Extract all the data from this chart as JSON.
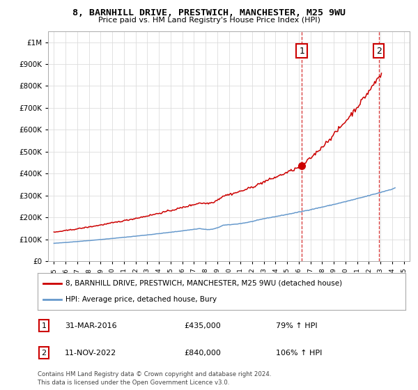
{
  "title": "8, BARNHILL DRIVE, PRESTWICH, MANCHESTER, M25 9WU",
  "subtitle": "Price paid vs. HM Land Registry's House Price Index (HPI)",
  "legend_line1": "8, BARNHILL DRIVE, PRESTWICH, MANCHESTER, M25 9WU (detached house)",
  "legend_line2": "HPI: Average price, detached house, Bury",
  "annotation1_label": "1",
  "annotation1_date": "31-MAR-2016",
  "annotation1_price": "£435,000",
  "annotation1_hpi": "79% ↑ HPI",
  "annotation1_year": 2016.25,
  "annotation1_value": 435000,
  "annotation2_label": "2",
  "annotation2_date": "11-NOV-2022",
  "annotation2_price": "£840,000",
  "annotation2_hpi": "106% ↑ HPI",
  "annotation2_year": 2022.86,
  "annotation2_value": 840000,
  "footer1": "Contains HM Land Registry data © Crown copyright and database right 2024.",
  "footer2": "This data is licensed under the Open Government Licence v3.0.",
  "red_color": "#cc0000",
  "blue_color": "#6699cc",
  "background_color": "#ffffff",
  "grid_color": "#dddddd",
  "ylim": [
    0,
    1050000
  ],
  "xlim": [
    1994.5,
    2025.5
  ]
}
